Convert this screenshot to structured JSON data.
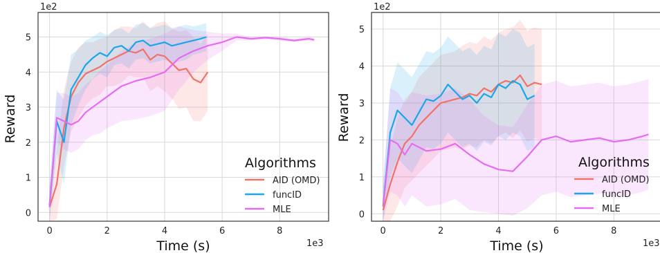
{
  "colors": {
    "AID (OMD)": "#f07268",
    "funcID": "#1aa6e8",
    "MLE": "#e46cf0",
    "grid": "#d8d8d8",
    "frame": "#333333"
  },
  "chart_data": [
    {
      "type": "line",
      "xlabel": "Time (s)",
      "ylabel": "Reward",
      "x_exponent_label": "1e3",
      "y_exponent_label": "1e2",
      "xlim": [
        -0.4,
        9.7
      ],
      "ylim": [
        -0.25,
        5.7
      ],
      "xticks": [
        0,
        2,
        4,
        6,
        8
      ],
      "yticks": [
        0,
        1,
        2,
        3,
        4,
        5
      ],
      "grid": true,
      "legend": {
        "title": "Algorithms",
        "placement": "bottom-right"
      },
      "series": [
        {
          "name": "AID (OMD)",
          "x": [
            0,
            0.25,
            0.5,
            0.75,
            1.0,
            1.25,
            1.5,
            1.75,
            2.0,
            2.25,
            2.5,
            2.75,
            3.0,
            3.25,
            3.5,
            3.75,
            4.0,
            4.25,
            4.5,
            4.75,
            5.0,
            5.25,
            5.5
          ],
          "y": [
            0.15,
            0.8,
            2.4,
            3.3,
            3.7,
            3.95,
            4.05,
            4.15,
            4.3,
            4.4,
            4.5,
            4.6,
            4.55,
            4.65,
            4.35,
            4.5,
            4.45,
            4.25,
            4.05,
            4.1,
            3.8,
            3.7,
            4.0
          ],
          "band": [
            0.6,
            1.0,
            1.1,
            1.0,
            1.0,
            0.9,
            0.8,
            0.8,
            0.7,
            0.8,
            0.8,
            0.7,
            0.7,
            0.8,
            0.9,
            0.9,
            1.0,
            1.0,
            1.1,
            1.1,
            1.2,
            1.1,
            1.1
          ]
        },
        {
          "name": "funcID",
          "x": [
            0,
            0.25,
            0.5,
            0.75,
            1.0,
            1.25,
            1.5,
            1.75,
            2.0,
            2.25,
            2.5,
            2.75,
            3.0,
            3.25,
            3.5,
            3.75,
            4.0,
            4.25,
            4.5,
            4.75,
            5.0,
            5.25,
            5.45
          ],
          "y": [
            0.2,
            2.6,
            2.0,
            3.5,
            3.85,
            4.2,
            4.4,
            4.55,
            4.45,
            4.7,
            4.75,
            4.6,
            4.85,
            4.9,
            4.75,
            4.8,
            4.85,
            4.75,
            4.8,
            4.85,
            4.9,
            4.95,
            5.0
          ],
          "band": [
            0.6,
            0.9,
            1.2,
            1.0,
            0.8,
            0.7,
            0.6,
            0.6,
            0.6,
            0.5,
            0.5,
            0.5,
            0.5,
            0.5,
            0.5,
            0.5,
            0.5,
            0.5,
            0.5,
            0.5,
            0.4,
            0.4,
            0.4
          ]
        },
        {
          "name": "MLE",
          "x": [
            0,
            0.25,
            0.5,
            0.75,
            1.0,
            1.25,
            1.5,
            1.75,
            2.0,
            2.5,
            3.0,
            3.5,
            4.0,
            4.5,
            5.0,
            5.5,
            6.0,
            6.5,
            7.0,
            7.5,
            8.0,
            8.5,
            9.0,
            9.2
          ],
          "y": [
            0.15,
            2.7,
            2.6,
            2.5,
            2.6,
            2.85,
            3.0,
            3.15,
            3.3,
            3.6,
            3.75,
            3.85,
            4.0,
            4.4,
            4.6,
            4.75,
            4.85,
            5.0,
            4.95,
            4.98,
            4.95,
            4.9,
            4.95,
            4.92
          ],
          "band": [
            0.5,
            0.7,
            0.8,
            0.8,
            0.8,
            0.8,
            0.8,
            0.9,
            0.9,
            1.0,
            1.1,
            1.1,
            1.1,
            0.9,
            0.6,
            0.4,
            0.25,
            0.1,
            0.05,
            0.05,
            0.05,
            0.05,
            0.05,
            0.05
          ]
        }
      ]
    },
    {
      "type": "line",
      "xlabel": "Time (s)",
      "ylabel": "Reward",
      "x_exponent_label": "1e3",
      "y_exponent_label": "1e2",
      "xlim": [
        -0.4,
        9.6
      ],
      "ylim": [
        -0.2,
        5.45
      ],
      "xticks": [
        0,
        2,
        4,
        6,
        8
      ],
      "yticks": [
        0,
        1,
        2,
        3,
        4,
        5
      ],
      "grid": true,
      "legend": {
        "title": "Algorithms",
        "placement": "bottom-right"
      },
      "series": [
        {
          "name": "AID (OMD)",
          "x": [
            0,
            0.25,
            0.5,
            0.75,
            1.0,
            1.25,
            1.5,
            1.75,
            2.0,
            2.25,
            2.5,
            2.75,
            3.0,
            3.25,
            3.5,
            3.75,
            4.0,
            4.25,
            4.5,
            4.75,
            5.0,
            5.25,
            5.5
          ],
          "y": [
            0.1,
            0.8,
            1.4,
            1.9,
            2.1,
            2.4,
            2.6,
            2.8,
            3.0,
            3.05,
            3.1,
            3.15,
            3.25,
            3.2,
            3.4,
            3.3,
            3.5,
            3.6,
            3.55,
            3.75,
            3.45,
            3.55,
            3.5
          ],
          "band": [
            0.6,
            1.0,
            1.2,
            1.2,
            1.2,
            1.3,
            1.3,
            1.3,
            1.3,
            1.3,
            1.3,
            1.4,
            1.4,
            1.4,
            1.4,
            1.4,
            1.4,
            1.4,
            1.5,
            1.5,
            1.5,
            1.5,
            1.5
          ]
        },
        {
          "name": "funcID",
          "x": [
            0,
            0.25,
            0.5,
            0.75,
            1.0,
            1.25,
            1.5,
            1.75,
            2.0,
            2.25,
            2.5,
            2.75,
            3.0,
            3.25,
            3.5,
            3.75,
            4.0,
            4.25,
            4.5,
            4.75,
            5.0,
            5.25
          ],
          "y": [
            0.2,
            2.2,
            2.8,
            2.6,
            2.4,
            2.75,
            3.1,
            3.05,
            3.2,
            3.5,
            3.3,
            3.1,
            3.2,
            3.0,
            3.25,
            3.15,
            3.5,
            3.4,
            3.6,
            3.5,
            3.1,
            3.2
          ],
          "band": [
            0.6,
            1.2,
            1.3,
            1.3,
            1.3,
            1.3,
            1.3,
            1.3,
            1.3,
            1.3,
            1.3,
            1.3,
            1.3,
            1.3,
            1.3,
            1.3,
            1.4,
            1.4,
            1.4,
            1.4,
            1.4,
            1.4
          ]
        },
        {
          "name": "MLE",
          "x": [
            0,
            0.25,
            0.5,
            0.75,
            1.0,
            1.5,
            2.0,
            2.5,
            3.0,
            3.5,
            4.0,
            4.5,
            5.0,
            5.5,
            6.0,
            6.5,
            7.0,
            7.5,
            8.0,
            8.5,
            9.0,
            9.2
          ],
          "y": [
            0.2,
            2.0,
            1.9,
            1.6,
            1.9,
            1.7,
            1.75,
            1.9,
            1.6,
            1.35,
            1.2,
            1.15,
            1.55,
            2.0,
            2.1,
            1.95,
            2.0,
            2.05,
            1.95,
            2.0,
            2.1,
            2.15
          ],
          "band": [
            0.6,
            1.4,
            1.4,
            1.4,
            1.4,
            1.5,
            1.5,
            1.5,
            1.5,
            1.3,
            1.2,
            1.2,
            1.4,
            1.5,
            1.5,
            1.5,
            1.5,
            1.5,
            1.5,
            1.5,
            1.5,
            1.5
          ]
        }
      ]
    }
  ]
}
